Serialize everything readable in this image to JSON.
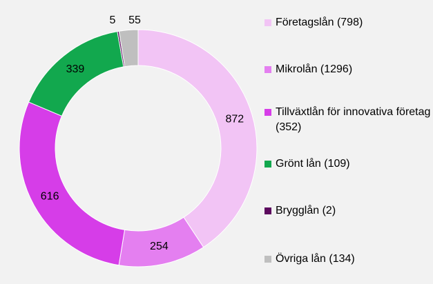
{
  "chart_data": {
    "type": "donut",
    "series": [
      {
        "name": "Företagslån (798)",
        "color": "#f2c4f5",
        "values": [
          872
        ]
      },
      {
        "name": "Mikrolån (1296)",
        "color": "#e47ff0",
        "values": [
          254
        ]
      },
      {
        "name": "Tillväxtlån för innovativa företag (352)",
        "color": "#d63de8",
        "values": [
          616
        ]
      },
      {
        "name": "Grönt lån (109)",
        "color": "#12a84e",
        "values": [
          339
        ]
      },
      {
        "name": "Brygglån (2)",
        "color": "#5c0a5e",
        "values": [
          5
        ]
      },
      {
        "name": "Övriga lån (134)",
        "color": "#bfbfbf",
        "values": [
          55
        ]
      }
    ],
    "legend": "right"
  }
}
